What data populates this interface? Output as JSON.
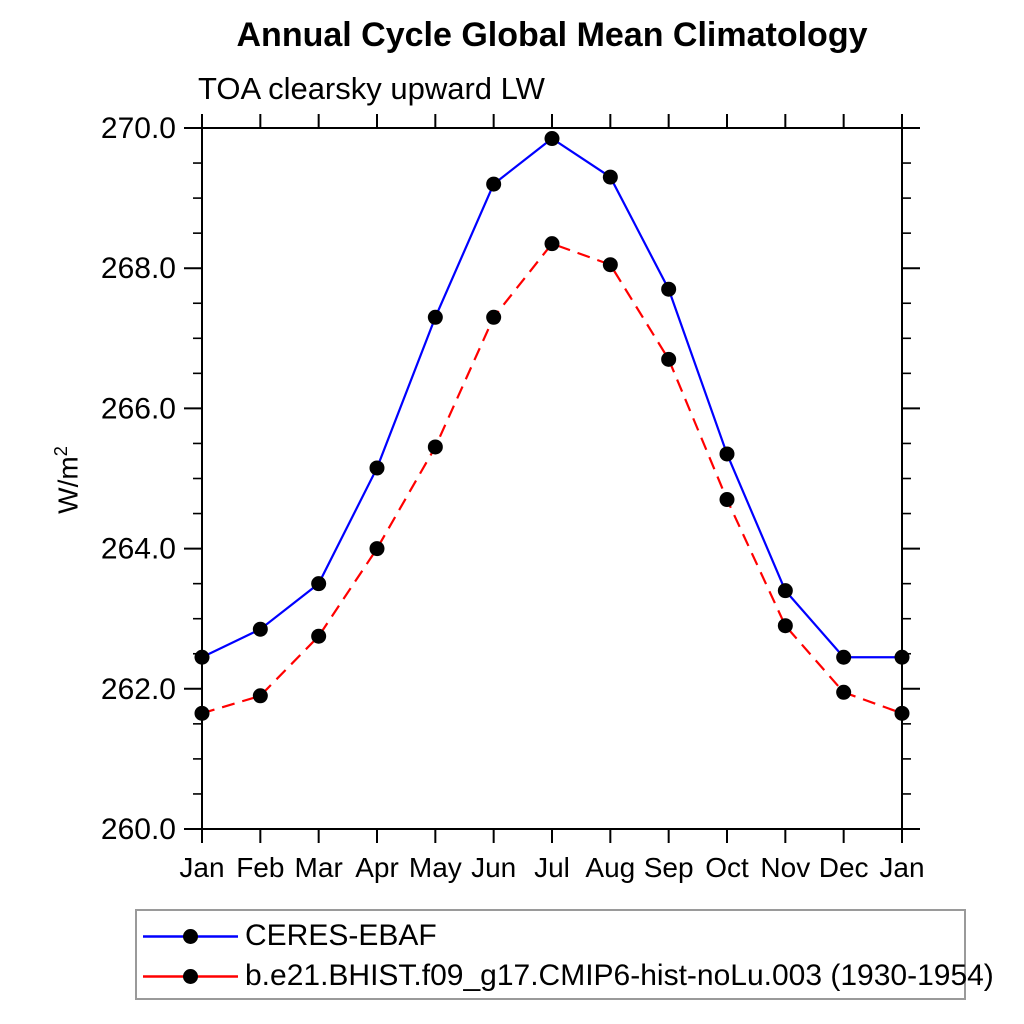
{
  "chart_data": {
    "type": "line",
    "title": "Annual Cycle Global Mean Climatology",
    "subtitle": "TOA clearsky upward LW",
    "ylabel": "W/m",
    "ylabel_superscript": "2",
    "categories": [
      "Jan",
      "Feb",
      "Mar",
      "Apr",
      "May",
      "Jun",
      "Jul",
      "Aug",
      "Sep",
      "Oct",
      "Nov",
      "Dec",
      "Jan"
    ],
    "series": [
      {
        "name": "CERES-EBAF",
        "color": "#0000ff",
        "line_style": "solid",
        "dash": "",
        "marker": "filled-circle",
        "marker_color": "#000000",
        "values": [
          262.45,
          262.85,
          263.5,
          265.15,
          267.3,
          269.2,
          269.85,
          269.3,
          267.7,
          265.35,
          263.4,
          262.45,
          262.45
        ]
      },
      {
        "name": "b.e21.BHIST.f09_g17.CMIP6-hist-noLu.003 (1930-1954)",
        "color": "#ff0000",
        "line_style": "dashed",
        "dash": "13,8",
        "marker": "filled-circle",
        "marker_color": "#000000",
        "values": [
          261.65,
          261.9,
          262.75,
          264.0,
          265.45,
          267.3,
          268.35,
          268.05,
          266.7,
          264.7,
          262.9,
          261.95,
          261.65
        ]
      }
    ],
    "ylim": [
      260.0,
      270.0
    ],
    "ytick_major_interval": 2.0,
    "ytick_minor_interval": 0.5,
    "ytick_labels": [
      "260.0",
      "262.0",
      "264.0",
      "266.0",
      "268.0",
      "270.0"
    ],
    "grid": false,
    "axis_color": "#000000",
    "legend_position": "bottom-left"
  }
}
